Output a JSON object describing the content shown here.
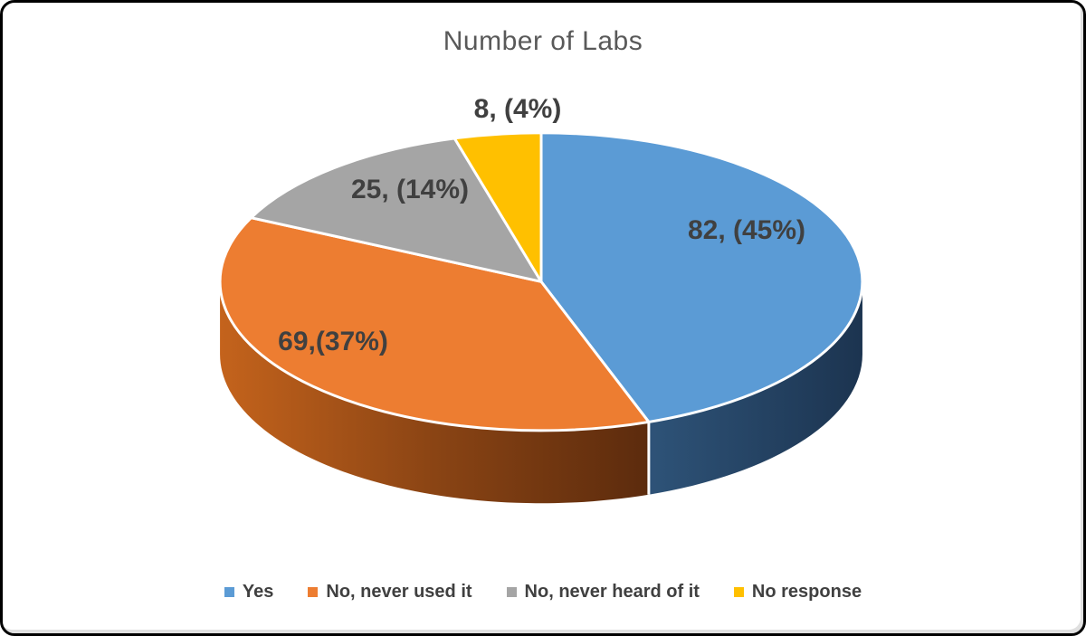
{
  "frame": {
    "background": "#ffffff",
    "border_color": "#000000"
  },
  "chart_data": {
    "type": "pie",
    "variant": "3d",
    "title": "Number of Labs",
    "title_color": "#595959",
    "label_color": "#404040",
    "legend_position": "bottom",
    "grid": false,
    "slices": [
      {
        "legend_label": "Yes",
        "value": 82,
        "percent": 45,
        "data_label": "82, (45%)",
        "color": "#5B9BD5",
        "side_gradient": [
          "#2E5378",
          "#1C3450"
        ]
      },
      {
        "legend_label": "No, never used it",
        "value": 69,
        "percent": 37,
        "data_label": "69,(37%)",
        "color": "#ED7D31",
        "side_gradient": [
          "#C4631C",
          "#8A4414",
          "#5C2B0D"
        ]
      },
      {
        "legend_label": "No, never heard of it",
        "value": 25,
        "percent": 14,
        "data_label": "25, (14%)",
        "color": "#A5A5A5"
      },
      {
        "legend_label": "No response",
        "value": 8,
        "percent": 4,
        "data_label": "8, (4%)",
        "color": "#FFC000"
      }
    ]
  }
}
